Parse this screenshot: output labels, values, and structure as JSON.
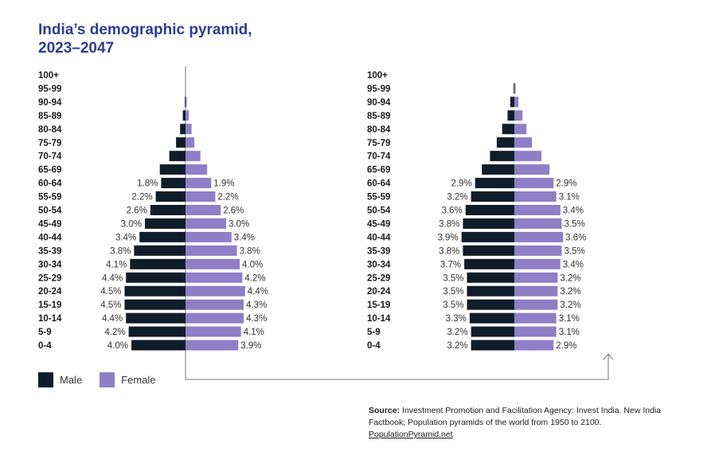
{
  "title": "India’s demographic pyramid, 2023–2047",
  "colors": {
    "male": "#0f1d2b",
    "female": "#8e7fc6",
    "title": "#2e3d92"
  },
  "legend": {
    "male": "Male",
    "female": "Female"
  },
  "source": {
    "label": "Source:",
    "text": "Investment Promotion and Facilitation Agency: Invest India. New India Factbook; Population pyramids of the world from 1950 to 2100.",
    "link": "PopulationPyramid.net"
  },
  "chart_data": {
    "type": "bar",
    "orientation": "horizontal-pyramid",
    "age_groups": [
      "100+",
      "95-99",
      "90-94",
      "85-89",
      "80-84",
      "75-79",
      "70-74",
      "65-69",
      "60-64",
      "55-59",
      "50-54",
      "45-49",
      "40-44",
      "35-39",
      "30-34",
      "25-29",
      "20-24",
      "15-19",
      "10-14",
      "5-9",
      "0-4"
    ],
    "pyramids": [
      {
        "male": [
          0,
          0,
          0.05,
          0.2,
          0.4,
          0.7,
          1.2,
          1.9,
          1.8,
          2.2,
          2.6,
          3.0,
          3.4,
          3.8,
          4.1,
          4.4,
          4.5,
          4.5,
          4.4,
          4.2,
          4.0
        ],
        "female": [
          0,
          0,
          0.1,
          0.25,
          0.45,
          0.65,
          1.1,
          1.6,
          1.9,
          2.2,
          2.6,
          3.0,
          3.4,
          3.8,
          4.0,
          4.2,
          4.4,
          4.3,
          4.3,
          4.1,
          3.9
        ],
        "male_labels": [
          "",
          "",
          "",
          "",
          "",
          "",
          "",
          "",
          "1.8%",
          "2.2%",
          "2.6%",
          "3.0%",
          "3.4%",
          "3.8%",
          "4.1%",
          "4.4%",
          "4.5%",
          "4.5%",
          "4.4%",
          "4.2%",
          "4.0%"
        ],
        "female_labels": [
          "",
          "",
          "",
          "",
          "",
          "",
          "",
          "",
          "1.9%",
          "2.2%",
          "2.6%",
          "3.0%",
          "3.4%",
          "3.8%",
          "4.0%",
          "4.2%",
          "4.4%",
          "4.3%",
          "4.3%",
          "4.1%",
          "3.9%"
        ]
      },
      {
        "male": [
          0,
          0.05,
          0.3,
          0.5,
          0.9,
          1.3,
          1.8,
          2.4,
          2.9,
          3.2,
          3.6,
          3.8,
          3.9,
          3.8,
          3.7,
          3.5,
          3.5,
          3.5,
          3.3,
          3.2,
          3.2
        ],
        "female": [
          0,
          0.1,
          0.3,
          0.6,
          0.9,
          1.3,
          2.0,
          2.6,
          2.9,
          3.1,
          3.4,
          3.5,
          3.6,
          3.5,
          3.4,
          3.2,
          3.2,
          3.2,
          3.1,
          3.1,
          2.9
        ],
        "male_labels": [
          "",
          "",
          "",
          "",
          "",
          "",
          "",
          "",
          "2.9%",
          "3.2%",
          "3.6%",
          "3.8%",
          "3.9%",
          "3.8%",
          "3.7%",
          "3.5%",
          "3.5%",
          "3.5%",
          "3.3%",
          "3.2%",
          "3.2%"
        ],
        "female_labels": [
          "",
          "",
          "",
          "",
          "",
          "",
          "",
          "",
          "2.9%",
          "3.1%",
          "3.4%",
          "3.5%",
          "3.6%",
          "3.5%",
          "3.4%",
          "3.2%",
          "3.2%",
          "3.2%",
          "3.1%",
          "3.1%",
          "2.9%"
        ]
      }
    ]
  }
}
